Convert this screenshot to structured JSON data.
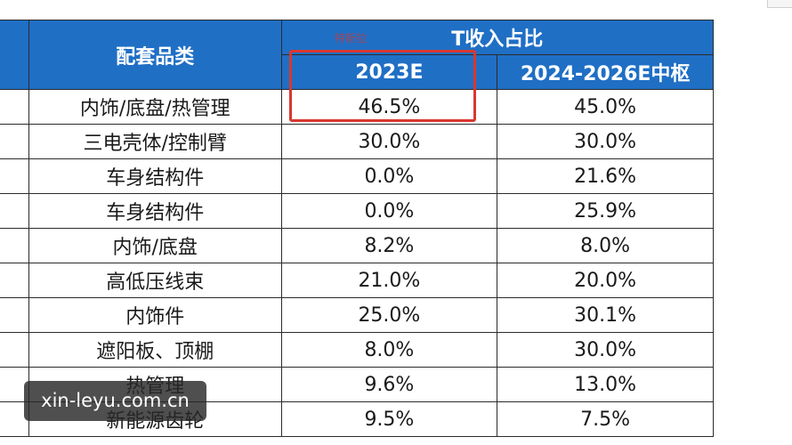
{
  "table": {
    "header": {
      "category_label": "配套品类",
      "group_label": "T收入占比",
      "col_2023": "2023E",
      "col_mid": "2024-2026E中枢"
    },
    "rows": [
      {
        "category": "内饰/底盘/热管理",
        "v2023": "46.5%",
        "vmid": "45.0%"
      },
      {
        "category": "三电壳体/控制臂",
        "v2023": "30.0%",
        "vmid": "30.0%"
      },
      {
        "category": "车身结构件",
        "v2023": "0.0%",
        "vmid": "21.6%"
      },
      {
        "category": "车身结构件",
        "v2023": "0.0%",
        "vmid": "25.9%"
      },
      {
        "category": "内饰/底盘",
        "v2023": "8.2%",
        "vmid": "8.0%"
      },
      {
        "category": "高低压线束",
        "v2023": "21.0%",
        "vmid": "20.0%"
      },
      {
        "category": "内饰件",
        "v2023": "25.0%",
        "vmid": "30.1%"
      },
      {
        "category": "遮阳板、顶棚",
        "v2023": "8.0%",
        "vmid": "30.0%"
      },
      {
        "category": "热管理",
        "v2023": "9.6%",
        "vmid": "13.0%"
      },
      {
        "category": "新能源齿轮",
        "v2023": "9.5%",
        "vmid": "7.5%"
      }
    ]
  },
  "annotation": {
    "note_text": "特斯拉",
    "box_color": "#d9372f"
  },
  "watermark": {
    "text": "xin-leyu.com.cn"
  },
  "colors": {
    "header_bg": "#1f6fc5",
    "header_text": "#ffffff",
    "grid": "#2b2b2b"
  }
}
